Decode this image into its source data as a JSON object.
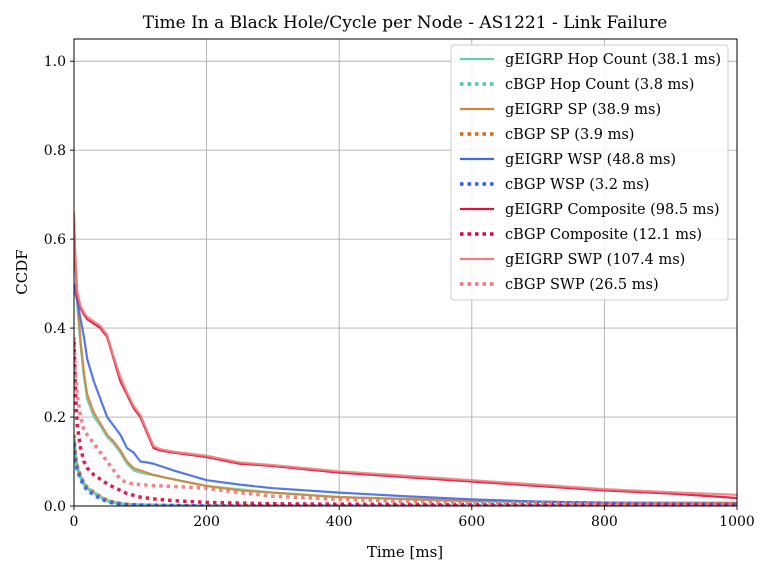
{
  "chart_data": {
    "type": "line",
    "title": "Time In a Black Hole/Cycle per Node - AS1221 - Link Failure",
    "xlabel": "Time [ms]",
    "ylabel": "CCDF",
    "xlim": [
      0,
      1000
    ],
    "ylim": [
      0,
      1.05
    ],
    "x_ticks": [
      "0",
      "200",
      "400",
      "600",
      "800",
      "1000"
    ],
    "y_ticks": [
      "0.0",
      "0.2",
      "0.4",
      "0.6",
      "0.8",
      "1.0"
    ],
    "x_tick_values": [
      0,
      200,
      400,
      600,
      800,
      1000
    ],
    "y_tick_values": [
      0.0,
      0.2,
      0.4,
      0.6,
      0.8,
      1.0
    ],
    "grid": true,
    "legend_position": "top-right",
    "series": [
      {
        "name": "gEIGRP Hop Count (38.1 ms)",
        "color": "#66cdaa",
        "style": "solid",
        "x": [
          0,
          2,
          5,
          10,
          15,
          20,
          30,
          40,
          50,
          60,
          70,
          80,
          90,
          100,
          150,
          200,
          300,
          400,
          500,
          600,
          800,
          1000
        ],
        "y": [
          0.62,
          0.55,
          0.45,
          0.36,
          0.29,
          0.24,
          0.2,
          0.18,
          0.155,
          0.14,
          0.12,
          0.095,
          0.08,
          0.075,
          0.06,
          0.045,
          0.03,
          0.02,
          0.015,
          0.01,
          0.008,
          0.007
        ]
      },
      {
        "name": "cBGP Hop Count (3.8 ms)",
        "color": "#48c9b0",
        "style": "dotted",
        "x": [
          0,
          2,
          5,
          10,
          15,
          20,
          30,
          40,
          50,
          60,
          70,
          80,
          100,
          150,
          200,
          400,
          1000
        ],
        "y": [
          0.15,
          0.11,
          0.085,
          0.065,
          0.05,
          0.04,
          0.03,
          0.02,
          0.012,
          0.008,
          0.005,
          0.003,
          0.002,
          0.001,
          0.0,
          0.0,
          0.0
        ]
      },
      {
        "name": "gEIGRP SP (38.9 ms)",
        "color": "#cd853f",
        "style": "solid",
        "x": [
          0,
          2,
          5,
          10,
          15,
          20,
          30,
          40,
          50,
          60,
          70,
          80,
          90,
          100,
          110,
          120,
          150,
          200,
          250,
          300,
          400,
          500,
          600,
          700,
          800,
          1000
        ],
        "y": [
          0.63,
          0.56,
          0.47,
          0.37,
          0.3,
          0.25,
          0.21,
          0.185,
          0.16,
          0.145,
          0.125,
          0.1,
          0.085,
          0.08,
          0.075,
          0.07,
          0.06,
          0.045,
          0.035,
          0.03,
          0.02,
          0.016,
          0.012,
          0.01,
          0.008,
          0.007
        ]
      },
      {
        "name": "cBGP SP (3.9 ms)",
        "color": "#d2691e",
        "style": "dotted",
        "x": [
          0,
          2,
          5,
          10,
          15,
          20,
          30,
          40,
          50,
          60,
          70,
          80,
          100,
          150,
          200,
          400,
          1000
        ],
        "y": [
          0.16,
          0.115,
          0.09,
          0.068,
          0.052,
          0.042,
          0.031,
          0.021,
          0.013,
          0.009,
          0.006,
          0.004,
          0.002,
          0.001,
          0.0,
          0.0,
          0.0
        ]
      },
      {
        "name": "gEIGRP WSP (48.8 ms)",
        "color": "#4169e1",
        "style": "solid",
        "x": [
          0,
          2,
          5,
          10,
          15,
          20,
          30,
          40,
          50,
          60,
          70,
          80,
          90,
          100,
          110,
          120,
          150,
          200,
          250,
          300,
          400,
          500,
          600,
          700,
          800,
          900,
          1000
        ],
        "y": [
          0.5,
          0.48,
          0.46,
          0.42,
          0.38,
          0.33,
          0.28,
          0.24,
          0.2,
          0.18,
          0.16,
          0.13,
          0.12,
          0.1,
          0.098,
          0.095,
          0.08,
          0.058,
          0.048,
          0.04,
          0.03,
          0.022,
          0.015,
          0.01,
          0.007,
          0.006,
          0.005
        ]
      },
      {
        "name": "cBGP WSP (3.2 ms)",
        "color": "#2e5cf0",
        "style": "dotted",
        "x": [
          0,
          2,
          5,
          10,
          15,
          20,
          30,
          40,
          50,
          60,
          70,
          80,
          100,
          150,
          200,
          400,
          1000
        ],
        "y": [
          0.14,
          0.1,
          0.08,
          0.06,
          0.045,
          0.035,
          0.025,
          0.016,
          0.01,
          0.006,
          0.004,
          0.003,
          0.002,
          0.001,
          0.0,
          0.0,
          0.0
        ]
      },
      {
        "name": "gEIGRP Composite (98.5 ms)",
        "color": "#dc143c",
        "style": "solid",
        "x": [
          0,
          2,
          5,
          10,
          15,
          20,
          30,
          40,
          50,
          60,
          70,
          80,
          90,
          100,
          110,
          120,
          130,
          150,
          200,
          250,
          300,
          400,
          500,
          600,
          700,
          800,
          900,
          1000
        ],
        "y": [
          0.65,
          0.55,
          0.47,
          0.445,
          0.43,
          0.42,
          0.41,
          0.4,
          0.38,
          0.33,
          0.28,
          0.25,
          0.22,
          0.2,
          0.165,
          0.13,
          0.125,
          0.12,
          0.11,
          0.095,
          0.09,
          0.075,
          0.065,
          0.055,
          0.045,
          0.035,
          0.028,
          0.018
        ]
      },
      {
        "name": "cBGP Composite (12.1 ms)",
        "color": "#e0003c",
        "style": "dotted",
        "x": [
          0,
          2,
          5,
          10,
          15,
          20,
          30,
          40,
          50,
          60,
          70,
          80,
          100,
          120,
          150,
          200,
          300,
          400,
          600,
          1000
        ],
        "y": [
          0.37,
          0.26,
          0.18,
          0.13,
          0.1,
          0.085,
          0.07,
          0.06,
          0.05,
          0.042,
          0.035,
          0.028,
          0.02,
          0.016,
          0.012,
          0.008,
          0.005,
          0.004,
          0.003,
          0.002
        ]
      },
      {
        "name": "gEIGRP SWP (107.4 ms)",
        "color": "#f08080",
        "style": "solid",
        "x": [
          0,
          2,
          5,
          10,
          15,
          20,
          30,
          40,
          50,
          60,
          70,
          80,
          90,
          100,
          110,
          120,
          130,
          150,
          200,
          250,
          300,
          400,
          500,
          600,
          700,
          800,
          900,
          1000
        ],
        "y": [
          0.66,
          0.56,
          0.48,
          0.45,
          0.435,
          0.425,
          0.415,
          0.405,
          0.385,
          0.335,
          0.29,
          0.255,
          0.225,
          0.205,
          0.17,
          0.135,
          0.128,
          0.122,
          0.113,
          0.098,
          0.092,
          0.078,
          0.068,
          0.058,
          0.048,
          0.038,
          0.031,
          0.025
        ]
      },
      {
        "name": "cBGP SWP (26.5 ms)",
        "color": "#f07878",
        "style": "dotted",
        "x": [
          0,
          2,
          5,
          10,
          15,
          20,
          30,
          40,
          50,
          60,
          70,
          80,
          90,
          100,
          120,
          150,
          200,
          250,
          300,
          400,
          500,
          600,
          800,
          1000
        ],
        "y": [
          0.38,
          0.3,
          0.25,
          0.2,
          0.17,
          0.16,
          0.14,
          0.12,
          0.1,
          0.08,
          0.06,
          0.052,
          0.05,
          0.048,
          0.046,
          0.044,
          0.04,
          0.03,
          0.022,
          0.015,
          0.01,
          0.008,
          0.006,
          0.005
        ]
      }
    ]
  }
}
